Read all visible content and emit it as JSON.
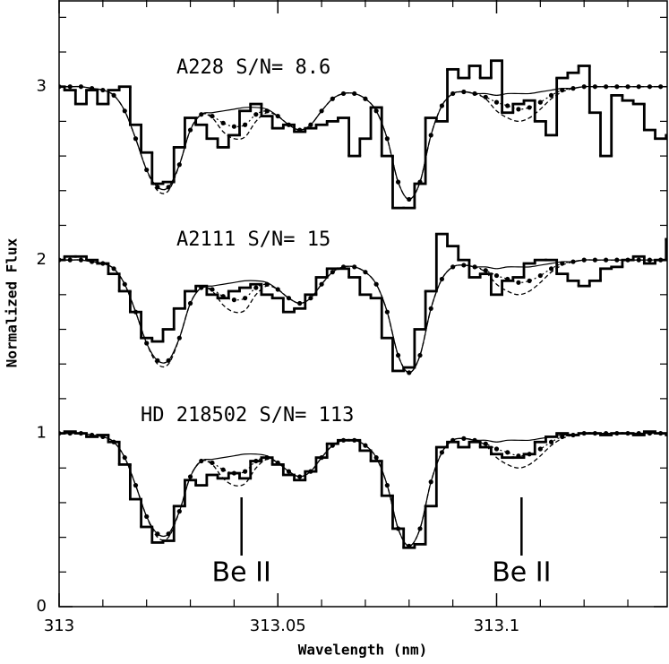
{
  "chart_data": {
    "type": "spectra",
    "xlabel": "Wavelength (nm)",
    "ylabel": "Normalized Flux",
    "xlim": [
      313,
      313.139
    ],
    "ylim": [
      0,
      3.5
    ],
    "xticks": [
      313,
      313.05,
      313.1
    ],
    "xminor": [
      313.01,
      313.02,
      313.03,
      313.04,
      313.06,
      313.07,
      313.08,
      313.09,
      313.11,
      313.12,
      313.13
    ],
    "yticks": [
      0,
      1,
      2,
      3
    ],
    "yminor": [
      0.2,
      0.4,
      0.6,
      0.8,
      1.2,
      1.4,
      1.6,
      1.8,
      2.2,
      2.4,
      2.6,
      2.8,
      3.2,
      3.4
    ],
    "labels": [
      "A228 S/N= 8.6",
      "A2111 S/N= 15",
      "HD 218502 S/N= 113"
    ],
    "markers": [
      {
        "label": "Be II",
        "x": 313.0417
      },
      {
        "label": "Be II",
        "x": 313.1057
      }
    ],
    "x": [
      313,
      313.0025,
      313.005,
      313.0075,
      313.01,
      313.0125,
      313.015,
      313.0175,
      313.02,
      313.0225,
      313.025,
      313.0275,
      313.03,
      313.0325,
      313.035,
      313.0375,
      313.04,
      313.0425,
      313.045,
      313.0475,
      313.05,
      313.0525,
      313.055,
      313.0575,
      313.06,
      313.0625,
      313.065,
      313.0675,
      313.07,
      313.0725,
      313.075,
      313.0775,
      313.08,
      313.0825,
      313.085,
      313.0875,
      313.09,
      313.0925,
      313.095,
      313.0975,
      313.1,
      313.1025,
      313.105,
      313.1075,
      313.11,
      313.1125,
      313.115,
      313.1175,
      313.12,
      313.1225,
      313.125,
      313.1275,
      313.13,
      313.1325,
      313.135,
      313.1375,
      313.14
    ],
    "series": [
      {
        "style": "steps",
        "color": "#000000",
        "values": [
          3.0,
          2.98,
          2.9,
          2.98,
          2.9,
          2.98,
          3.0,
          2.78,
          2.62,
          2.44,
          2.45,
          2.65,
          2.82,
          2.78,
          2.7,
          2.65,
          2.72,
          2.86,
          2.9,
          2.83,
          2.76,
          2.78,
          2.74,
          2.76,
          2.78,
          2.8,
          2.82,
          2.6,
          2.7,
          2.88,
          2.6,
          2.3,
          2.3,
          2.44,
          2.82,
          2.8,
          3.1,
          3.05,
          3.12,
          3.05,
          3.15,
          2.85,
          2.9,
          2.92,
          2.8,
          2.72,
          3.05,
          3.08,
          3.12,
          2.85,
          2.6,
          2.95,
          2.92,
          2.9,
          2.75,
          2.7,
          2.72
        ]
      },
      {
        "style": "dots",
        "color": "#000000",
        "values": [
          3,
          3,
          3,
          2.99,
          2.98,
          2.95,
          2.86,
          2.7,
          2.52,
          2.42,
          2.42,
          2.55,
          2.75,
          2.84,
          2.83,
          2.79,
          2.77,
          2.78,
          2.84,
          2.86,
          2.83,
          2.78,
          2.75,
          2.78,
          2.86,
          2.93,
          2.96,
          2.96,
          2.93,
          2.86,
          2.7,
          2.45,
          2.35,
          2.45,
          2.72,
          2.89,
          2.96,
          2.97,
          2.96,
          2.94,
          2.91,
          2.89,
          2.87,
          2.88,
          2.91,
          2.95,
          2.98,
          2.99,
          3,
          3,
          3,
          3,
          3,
          3,
          3,
          3,
          3
        ]
      },
      {
        "style": "dashed",
        "color": "#000000",
        "values": [
          3,
          3,
          3,
          2.99,
          2.98,
          2.95,
          2.86,
          2.7,
          2.52,
          2.4,
          2.4,
          2.55,
          2.75,
          2.84,
          2.82,
          2.74,
          2.7,
          2.71,
          2.8,
          2.85,
          2.83,
          2.78,
          2.75,
          2.78,
          2.86,
          2.93,
          2.96,
          2.96,
          2.93,
          2.86,
          2.7,
          2.45,
          2.35,
          2.45,
          2.72,
          2.89,
          2.96,
          2.97,
          2.96,
          2.93,
          2.86,
          2.82,
          2.8,
          2.82,
          2.87,
          2.93,
          2.97,
          2.99,
          3,
          3,
          3,
          3,
          3,
          3,
          3,
          3,
          3
        ]
      },
      {
        "style": "solid",
        "color": "#000000",
        "values": [
          3,
          3,
          3,
          2.99,
          2.98,
          2.95,
          2.86,
          2.7,
          2.52,
          2.42,
          2.42,
          2.55,
          2.75,
          2.84,
          2.85,
          2.86,
          2.87,
          2.88,
          2.88,
          2.87,
          2.83,
          2.78,
          2.75,
          2.78,
          2.86,
          2.93,
          2.96,
          2.96,
          2.93,
          2.86,
          2.7,
          2.45,
          2.35,
          2.45,
          2.72,
          2.89,
          2.96,
          2.97,
          2.96,
          2.96,
          2.95,
          2.96,
          2.96,
          2.96,
          2.97,
          2.98,
          2.99,
          2.99,
          3,
          3,
          3,
          3,
          3,
          3,
          3,
          3,
          3
        ]
      },
      {
        "style": "steps",
        "color": "#000000",
        "values": [
          2.0,
          2.02,
          2.02,
          2.0,
          1.98,
          1.92,
          1.82,
          1.7,
          1.55,
          1.53,
          1.6,
          1.72,
          1.82,
          1.85,
          1.8,
          1.78,
          1.82,
          1.84,
          1.86,
          1.8,
          1.78,
          1.7,
          1.72,
          1.8,
          1.9,
          1.95,
          1.95,
          1.9,
          1.8,
          1.78,
          1.55,
          1.36,
          1.38,
          1.6,
          1.82,
          2.15,
          2.08,
          2.0,
          1.9,
          1.92,
          1.8,
          1.88,
          1.9,
          1.98,
          2.0,
          2.0,
          1.92,
          1.88,
          1.85,
          1.88,
          1.95,
          1.96,
          2.0,
          2.02,
          1.98,
          2.0,
          2.12
        ]
      },
      {
        "style": "dots",
        "color": "#000000",
        "values": [
          2,
          2,
          2,
          1.99,
          1.98,
          1.95,
          1.86,
          1.7,
          1.52,
          1.42,
          1.42,
          1.55,
          1.75,
          1.84,
          1.83,
          1.79,
          1.77,
          1.78,
          1.84,
          1.86,
          1.83,
          1.78,
          1.75,
          1.78,
          1.86,
          1.93,
          1.96,
          1.96,
          1.93,
          1.86,
          1.7,
          1.45,
          1.35,
          1.45,
          1.72,
          1.89,
          1.96,
          1.97,
          1.96,
          1.94,
          1.91,
          1.89,
          1.87,
          1.88,
          1.91,
          1.95,
          1.98,
          1.99,
          2,
          2,
          2,
          2,
          2,
          2,
          2,
          2,
          2
        ]
      },
      {
        "style": "dashed",
        "color": "#000000",
        "values": [
          2,
          2,
          2,
          1.99,
          1.98,
          1.95,
          1.86,
          1.7,
          1.52,
          1.4,
          1.4,
          1.55,
          1.75,
          1.84,
          1.82,
          1.74,
          1.7,
          1.71,
          1.8,
          1.85,
          1.83,
          1.78,
          1.75,
          1.78,
          1.86,
          1.93,
          1.96,
          1.96,
          1.93,
          1.86,
          1.7,
          1.45,
          1.35,
          1.45,
          1.72,
          1.89,
          1.96,
          1.97,
          1.96,
          1.93,
          1.86,
          1.82,
          1.8,
          1.82,
          1.87,
          1.93,
          1.97,
          1.99,
          2,
          2,
          2,
          2,
          2,
          2,
          2,
          2,
          2
        ]
      },
      {
        "style": "solid",
        "color": "#000000",
        "values": [
          2,
          2,
          2,
          1.99,
          1.98,
          1.95,
          1.86,
          1.7,
          1.52,
          1.42,
          1.42,
          1.55,
          1.75,
          1.84,
          1.85,
          1.86,
          1.87,
          1.88,
          1.88,
          1.87,
          1.83,
          1.78,
          1.75,
          1.78,
          1.86,
          1.93,
          1.96,
          1.96,
          1.93,
          1.86,
          1.7,
          1.45,
          1.35,
          1.45,
          1.72,
          1.89,
          1.96,
          1.97,
          1.96,
          1.96,
          1.95,
          1.96,
          1.96,
          1.96,
          1.97,
          1.98,
          1.99,
          1.99,
          2,
          2,
          2,
          2,
          2,
          2,
          2,
          2,
          2
        ]
      },
      {
        "style": "steps",
        "color": "#000000",
        "values": [
          1.0,
          1.01,
          1.0,
          0.98,
          0.99,
          0.95,
          0.82,
          0.62,
          0.46,
          0.37,
          0.38,
          0.58,
          0.73,
          0.7,
          0.76,
          0.74,
          0.77,
          0.74,
          0.84,
          0.86,
          0.82,
          0.76,
          0.73,
          0.78,
          0.86,
          0.94,
          0.96,
          0.96,
          0.9,
          0.84,
          0.64,
          0.45,
          0.34,
          0.36,
          0.58,
          0.92,
          0.95,
          0.92,
          0.95,
          0.92,
          0.88,
          0.86,
          0.86,
          0.88,
          0.95,
          0.98,
          1.0,
          0.99,
          1.0,
          1.0,
          0.99,
          1.0,
          1.0,
          0.99,
          1.01,
          1.0,
          0.99
        ]
      },
      {
        "style": "dots",
        "color": "#000000",
        "values": [
          1,
          1,
          1,
          0.99,
          0.98,
          0.95,
          0.86,
          0.7,
          0.52,
          0.42,
          0.42,
          0.55,
          0.75,
          0.84,
          0.83,
          0.79,
          0.77,
          0.78,
          0.84,
          0.86,
          0.83,
          0.78,
          0.75,
          0.78,
          0.86,
          0.93,
          0.96,
          0.96,
          0.93,
          0.86,
          0.7,
          0.45,
          0.35,
          0.45,
          0.72,
          0.89,
          0.96,
          0.97,
          0.96,
          0.94,
          0.91,
          0.89,
          0.87,
          0.88,
          0.91,
          0.95,
          0.98,
          0.99,
          1,
          1,
          1,
          1,
          1,
          1,
          1,
          1,
          1
        ]
      },
      {
        "style": "dashed",
        "color": "#000000",
        "values": [
          1,
          1,
          1,
          0.99,
          0.98,
          0.95,
          0.86,
          0.7,
          0.52,
          0.4,
          0.4,
          0.55,
          0.75,
          0.84,
          0.82,
          0.74,
          0.7,
          0.71,
          0.8,
          0.85,
          0.83,
          0.78,
          0.75,
          0.78,
          0.86,
          0.93,
          0.96,
          0.96,
          0.93,
          0.86,
          0.7,
          0.45,
          0.35,
          0.45,
          0.72,
          0.89,
          0.96,
          0.97,
          0.96,
          0.93,
          0.86,
          0.82,
          0.8,
          0.82,
          0.87,
          0.93,
          0.97,
          0.99,
          1,
          1,
          1,
          1,
          1,
          1,
          1,
          1,
          1
        ]
      },
      {
        "style": "solid",
        "color": "#000000",
        "values": [
          1,
          1,
          1,
          0.99,
          0.98,
          0.95,
          0.86,
          0.7,
          0.52,
          0.42,
          0.42,
          0.55,
          0.75,
          0.84,
          0.85,
          0.86,
          0.87,
          0.88,
          0.88,
          0.87,
          0.83,
          0.78,
          0.75,
          0.78,
          0.86,
          0.93,
          0.96,
          0.96,
          0.93,
          0.86,
          0.7,
          0.45,
          0.35,
          0.45,
          0.72,
          0.89,
          0.96,
          0.97,
          0.96,
          0.96,
          0.95,
          0.96,
          0.96,
          0.96,
          0.97,
          0.98,
          0.99,
          0.99,
          1,
          1,
          1,
          1,
          1,
          1,
          1,
          1,
          1
        ]
      }
    ]
  }
}
